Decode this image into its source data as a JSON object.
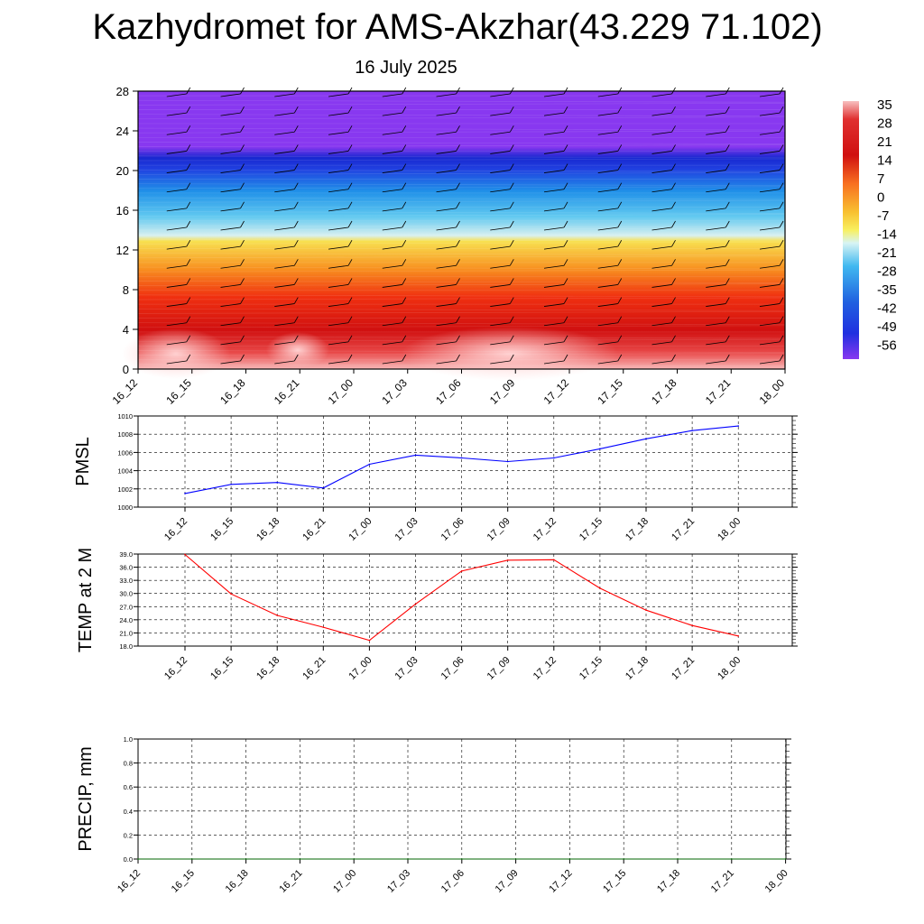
{
  "title": "Kazhydromet for AMS-Akzhar(43.229 71.102)",
  "subtitle": "16 July 2025",
  "chart_data": [
    {
      "type": "heatmap",
      "name": "vertical-profile",
      "x_categories": [
        "16_12",
        "16_15",
        "16_18",
        "16_21",
        "17_00",
        "17_03",
        "17_06",
        "17_09",
        "17_12",
        "17_15",
        "17_18",
        "17_21",
        "18_00"
      ],
      "y_ticks": [
        "0",
        "4",
        "8",
        "12",
        "16",
        "20",
        "24",
        "28"
      ],
      "ylim": [
        0,
        28
      ],
      "colorbar_labels": [
        "35",
        "28",
        "21",
        "14",
        "7",
        "0",
        "-7",
        "-14",
        "-21",
        "-28",
        "-35",
        "-42",
        "-49",
        "-56"
      ],
      "colors": {
        "hot": "#f8b0b0",
        "red": "#d01818",
        "orange": "#f89020",
        "yellow": "#f8e040",
        "pale": "#d0f0f8",
        "blue_light": "#30b0f0",
        "blue": "#2060e0",
        "blue_dark": "#1030d8",
        "violet": "#8030f0"
      }
    },
    {
      "type": "line",
      "name": "pmsl",
      "ylabel": "PMSL",
      "x": [
        "16_12",
        "16_15",
        "16_18",
        "16_21",
        "17_00",
        "17_03",
        "17_06",
        "17_09",
        "17_12",
        "17_15",
        "17_18",
        "17_21",
        "18_00"
      ],
      "series": [
        {
          "values": [
            1001.5,
            1002.5,
            1002.7,
            1002.1,
            1004.7,
            1005.7,
            1005.4,
            1005.0,
            1005.4,
            1006.4,
            1007.5,
            1008.4,
            1008.9
          ],
          "color": "#0000ff"
        }
      ],
      "ylim": [
        1000,
        1010
      ],
      "y_ticks": [
        "1000",
        "1002",
        "1004",
        "1006",
        "1008",
        "1010"
      ],
      "grid": true
    },
    {
      "type": "line",
      "name": "temp2m",
      "ylabel": "TEMP at 2 M",
      "x": [
        "16_12",
        "16_15",
        "16_18",
        "16_21",
        "17_00",
        "17_03",
        "17_06",
        "17_09",
        "17_12",
        "17_15",
        "17_18",
        "17_21",
        "18_00"
      ],
      "series": [
        {
          "values": [
            38.9,
            29.9,
            25.0,
            22.3,
            19.3,
            27.6,
            35.1,
            37.6,
            37.7,
            31.2,
            26.2,
            22.7,
            20.3
          ],
          "color": "#ff0000"
        }
      ],
      "ylim": [
        18,
        39
      ],
      "y_ticks": [
        "18.0",
        "21.0",
        "24.0",
        "27.0",
        "30.0",
        "33.0",
        "36.0",
        "39.0"
      ],
      "grid": true
    },
    {
      "type": "line",
      "name": "precip",
      "ylabel": "PRECIP, mm",
      "x": [
        "16_12",
        "16_15",
        "16_18",
        "16_21",
        "17_00",
        "17_03",
        "17_06",
        "17_09",
        "17_12",
        "17_15",
        "17_18",
        "17_21",
        "18_00"
      ],
      "series": [
        {
          "values": [
            0,
            0,
            0,
            0,
            0,
            0,
            0,
            0,
            0,
            0,
            0,
            0,
            0
          ],
          "color": "#006400"
        }
      ],
      "ylim": [
        0,
        1
      ],
      "y_ticks": [
        "0.0",
        "0.2",
        "0.4",
        "0.6",
        "0.8",
        "1.0"
      ],
      "grid": true
    }
  ]
}
